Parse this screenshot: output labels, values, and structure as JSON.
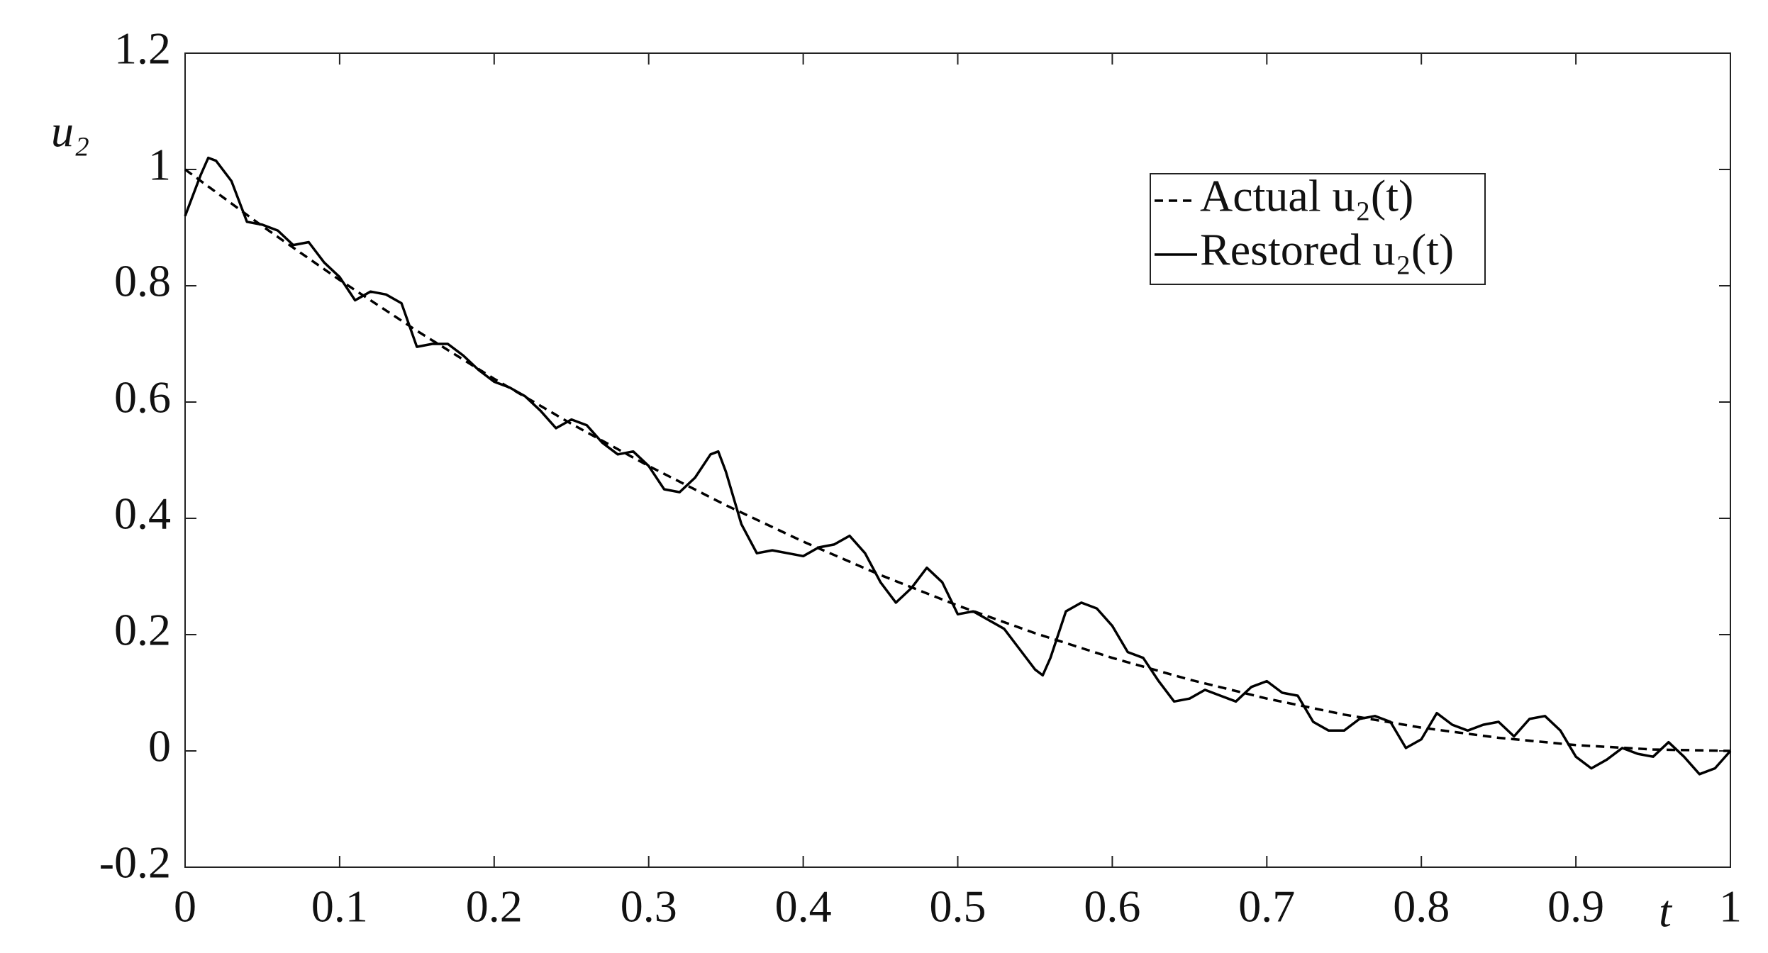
{
  "chart_data": {
    "type": "line",
    "xlabel": "t",
    "ylabel": "u₂",
    "xlim": [
      0,
      1
    ],
    "ylim": [
      -0.2,
      1.2
    ],
    "xticks": [
      0,
      0.1,
      0.2,
      0.3,
      0.4,
      0.5,
      0.6,
      0.7,
      0.8,
      0.9,
      1
    ],
    "yticks": [
      -0.2,
      0,
      0.2,
      0.4,
      0.6,
      0.8,
      1,
      1.2
    ],
    "grid": false,
    "legend": "upper right",
    "series": [
      {
        "name": "Actual u₂(t)",
        "color": "#000000",
        "style": "dashed",
        "x": [
          0,
          0.05,
          0.1,
          0.15,
          0.2,
          0.25,
          0.3,
          0.35,
          0.4,
          0.45,
          0.5,
          0.55,
          0.6,
          0.65,
          0.7,
          0.75,
          0.8,
          0.85,
          0.9,
          0.95,
          1
        ],
        "values": [
          1,
          0.9025,
          0.81,
          0.7225,
          0.64,
          0.5625,
          0.49,
          0.4225,
          0.36,
          0.3025,
          0.25,
          0.2025,
          0.16,
          0.1225,
          0.09,
          0.0625,
          0.04,
          0.0225,
          0.01,
          0.0025,
          0
        ]
      },
      {
        "name": "Restored u₂(t)",
        "color": "#000000",
        "style": "solid",
        "x": [
          0,
          0.01,
          0.015,
          0.02,
          0.03,
          0.04,
          0.05,
          0.06,
          0.07,
          0.08,
          0.09,
          0.1,
          0.11,
          0.12,
          0.13,
          0.14,
          0.15,
          0.16,
          0.17,
          0.18,
          0.19,
          0.2,
          0.21,
          0.22,
          0.23,
          0.24,
          0.25,
          0.26,
          0.27,
          0.28,
          0.29,
          0.3,
          0.31,
          0.32,
          0.33,
          0.34,
          0.345,
          0.35,
          0.36,
          0.37,
          0.38,
          0.39,
          0.4,
          0.41,
          0.42,
          0.43,
          0.44,
          0.45,
          0.46,
          0.47,
          0.48,
          0.49,
          0.5,
          0.51,
          0.52,
          0.53,
          0.54,
          0.55,
          0.555,
          0.56,
          0.57,
          0.58,
          0.59,
          0.6,
          0.61,
          0.62,
          0.63,
          0.64,
          0.65,
          0.66,
          0.67,
          0.68,
          0.69,
          0.7,
          0.71,
          0.72,
          0.73,
          0.74,
          0.75,
          0.76,
          0.77,
          0.78,
          0.79,
          0.8,
          0.81,
          0.82,
          0.83,
          0.84,
          0.85,
          0.86,
          0.87,
          0.88,
          0.89,
          0.9,
          0.91,
          0.92,
          0.93,
          0.94,
          0.95,
          0.96,
          0.97,
          0.98,
          0.99,
          1
        ],
        "values": [
          0.92,
          0.99,
          1.02,
          1.015,
          0.98,
          0.91,
          0.905,
          0.895,
          0.87,
          0.875,
          0.84,
          0.815,
          0.775,
          0.79,
          0.785,
          0.77,
          0.695,
          0.7,
          0.7,
          0.68,
          0.655,
          0.635,
          0.625,
          0.61,
          0.585,
          0.555,
          0.57,
          0.56,
          0.53,
          0.51,
          0.515,
          0.49,
          0.45,
          0.445,
          0.47,
          0.51,
          0.515,
          0.48,
          0.39,
          0.34,
          0.345,
          0.34,
          0.335,
          0.35,
          0.355,
          0.37,
          0.34,
          0.29,
          0.255,
          0.28,
          0.315,
          0.29,
          0.235,
          0.24,
          0.225,
          0.21,
          0.175,
          0.14,
          0.13,
          0.16,
          0.24,
          0.255,
          0.245,
          0.215,
          0.17,
          0.16,
          0.12,
          0.085,
          0.09,
          0.105,
          0.095,
          0.085,
          0.11,
          0.12,
          0.1,
          0.095,
          0.05,
          0.035,
          0.035,
          0.055,
          0.06,
          0.05,
          0.005,
          0.02,
          0.065,
          0.045,
          0.035,
          0.045,
          0.05,
          0.025,
          0.055,
          0.06,
          0.035,
          -0.01,
          -0.03,
          -0.015,
          0.005,
          -0.005,
          -0.01,
          0.015,
          -0.01,
          -0.04,
          -0.03,
          0
        ]
      }
    ]
  }
}
